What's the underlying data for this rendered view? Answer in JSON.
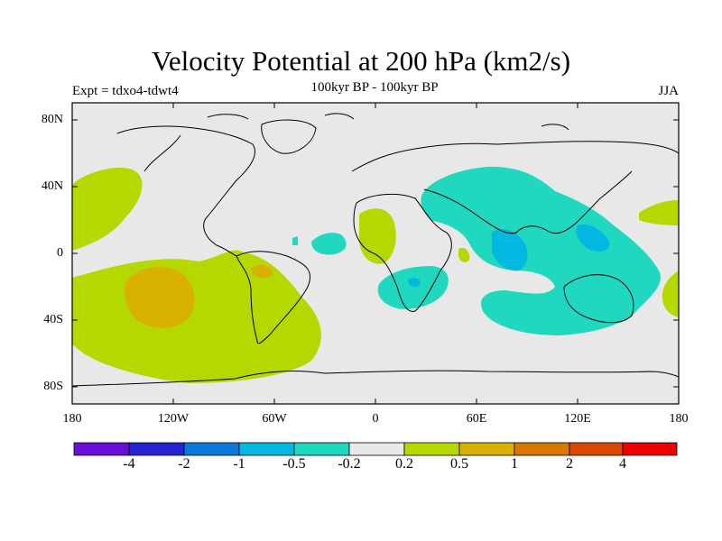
{
  "title": "Velocity Potential at 200 hPa (km2/s)",
  "subtitle": "100kyr BP - 100kyr BP",
  "left_label": "Expt = tdxo4-tdwt4",
  "right_label": "JJA",
  "y_ticks": [
    "80N",
    "40N",
    "0",
    "40S",
    "80S"
  ],
  "x_ticks": [
    "180",
    "120W",
    "60W",
    "0",
    "60E",
    "120E",
    "180"
  ],
  "colorbar": {
    "colors": [
      "#6a0fd8",
      "#2424d4",
      "#0a78d8",
      "#03b8e0",
      "#20d8c0",
      "#e8e8e8",
      "#b4d800",
      "#d8b000",
      "#d87800",
      "#d84800",
      "#ec0000"
    ],
    "labels": [
      "-4",
      "-2",
      "-1",
      "-0.5",
      "-0.2",
      "0.2",
      "0.5",
      "1",
      "2",
      "4"
    ]
  },
  "fill_colors": {
    "neutral": "#e8e8e8",
    "positive_low": "#b4d800",
    "positive_mid": "#d8b000",
    "negative_low": "#20d8c0",
    "negative_mid": "#03b8e0"
  }
}
